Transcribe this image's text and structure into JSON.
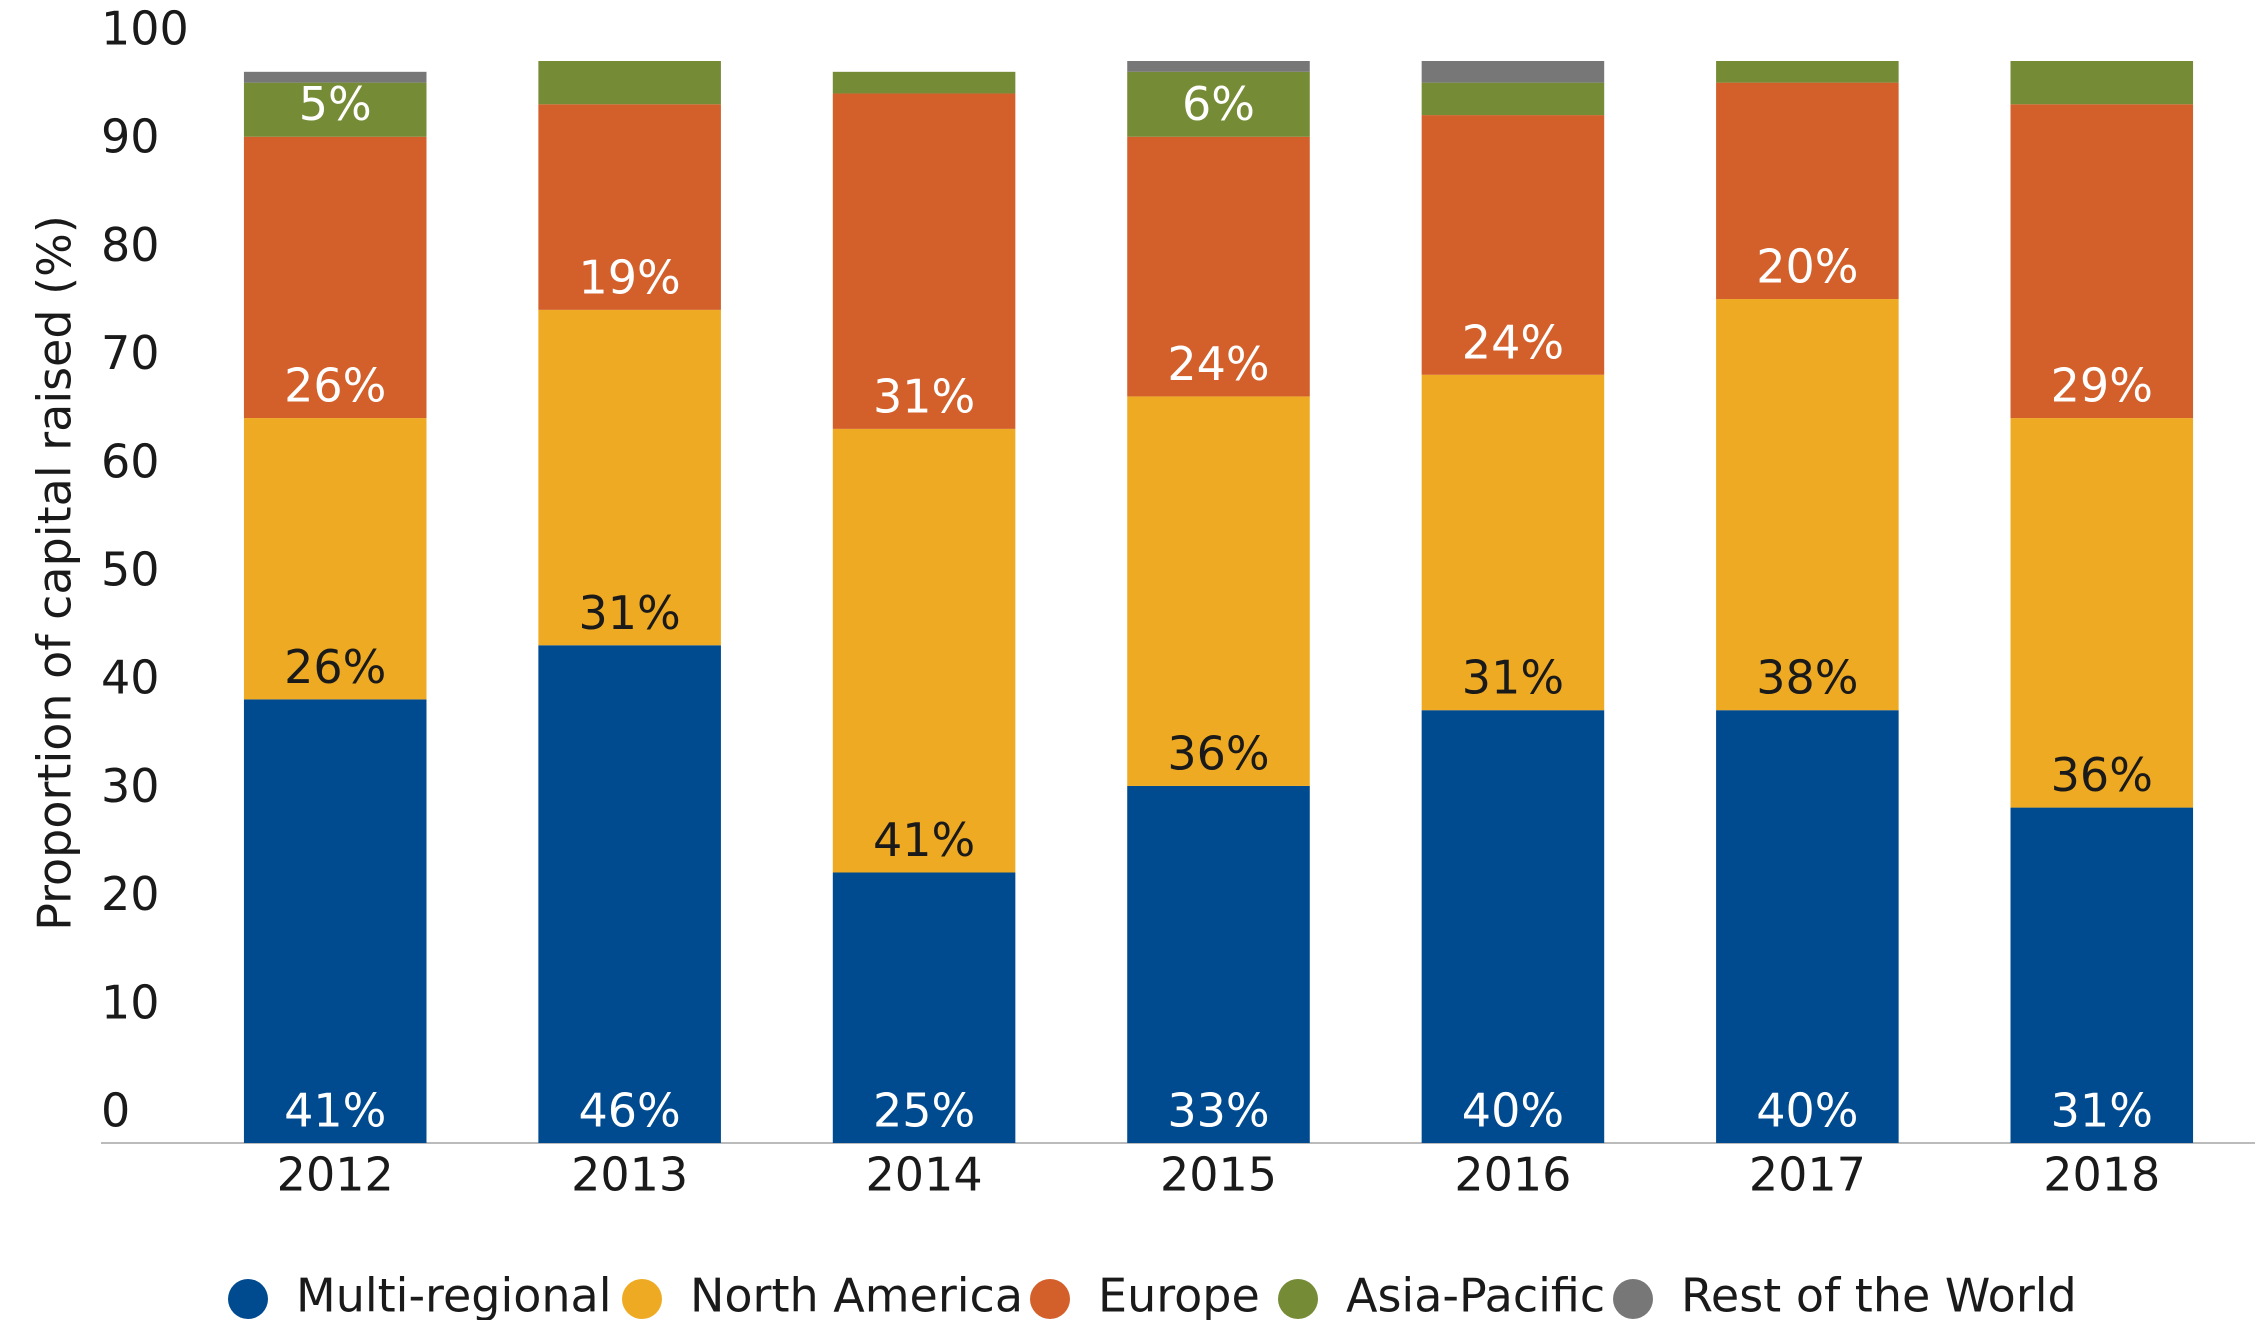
{
  "chart_data": {
    "type": "stacked_bar",
    "ylabel": "Proportion of capital raised (%)",
    "categories": [
      "2012",
      "2013",
      "2014",
      "2015",
      "2016",
      "2017",
      "2018"
    ],
    "series": [
      {
        "name": "Multi-regional",
        "color": "#004a8f",
        "label_color": "#ffffff",
        "values": [
          41,
          46,
          25,
          33,
          40,
          40,
          31
        ],
        "value_labels": [
          "41%",
          "46%",
          "25%",
          "33%",
          "40%",
          "40%",
          "31%"
        ]
      },
      {
        "name": "North America",
        "color": "#eeaa22",
        "label_color": "#1a1a1a",
        "values": [
          26,
          31,
          41,
          36,
          31,
          38,
          36
        ],
        "value_labels": [
          "26%",
          "31%",
          "41%",
          "36%",
          "31%",
          "38%",
          "36%"
        ]
      },
      {
        "name": "Europe",
        "color": "#d35f2a",
        "label_color": "#ffffff",
        "values": [
          26,
          19,
          31,
          24,
          24,
          20,
          29
        ],
        "value_labels": [
          "26%",
          "19%",
          "31%",
          "24%",
          "24%",
          "20%",
          "29%"
        ]
      },
      {
        "name": "Asia-Pacific",
        "color": "#758b35",
        "label_color": "#ffffff",
        "values": [
          5,
          4,
          2,
          6,
          3,
          2,
          4
        ],
        "value_labels": [
          "5%",
          null,
          null,
          "6%",
          null,
          null,
          null
        ]
      },
      {
        "name": "Rest of the World",
        "color": "#777777",
        "label_color": "#ffffff",
        "values": [
          1,
          0,
          0,
          1,
          2,
          0,
          0
        ],
        "value_labels": [
          null,
          null,
          null,
          null,
          null,
          null,
          null
        ]
      }
    ],
    "ylim": [
      0,
      100
    ],
    "yticks": [
      0,
      10,
      20,
      30,
      40,
      50,
      60,
      70,
      80,
      90,
      100
    ],
    "legend": "bottom"
  }
}
